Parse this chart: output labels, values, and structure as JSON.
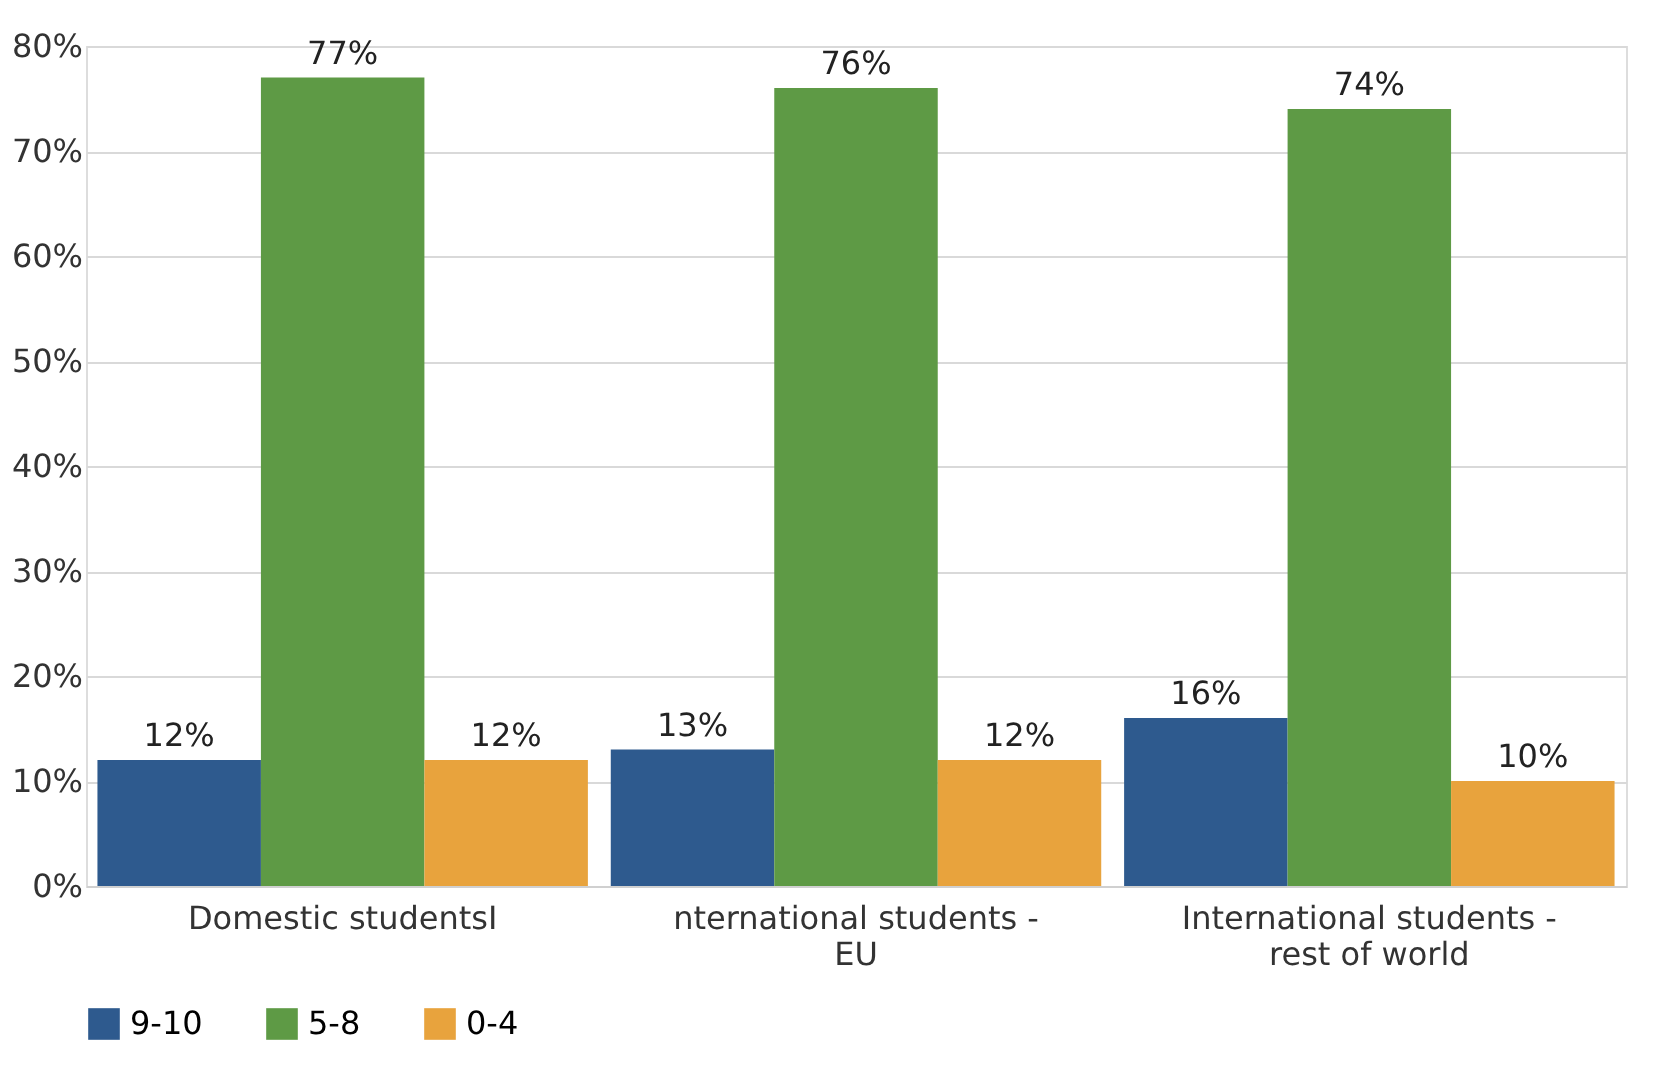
{
  "chart_data": {
    "type": "bar",
    "categories": [
      "Domestic studentsI",
      "nternational students - EU",
      "International students - rest of world"
    ],
    "series": [
      {
        "name": "9-10",
        "color": "#2e5a8e",
        "values": [
          12,
          13,
          16
        ]
      },
      {
        "name": "5-8",
        "color": "#5e9a45",
        "values": [
          77,
          76,
          74
        ]
      },
      {
        "name": "0-4",
        "color": "#e8a33d",
        "values": [
          12,
          12,
          10
        ]
      }
    ],
    "ylim": [
      0,
      80
    ],
    "yticks": [
      {
        "value": 0,
        "label": "0%"
      },
      {
        "value": 10,
        "label": "10%"
      },
      {
        "value": 20,
        "label": "20%"
      },
      {
        "value": 30,
        "label": "30%"
      },
      {
        "value": 40,
        "label": "40%"
      },
      {
        "value": 50,
        "label": "50%"
      },
      {
        "value": 60,
        "label": "60%"
      },
      {
        "value": 70,
        "label": "70%"
      },
      {
        "value": 80,
        "label": "80%"
      }
    ],
    "value_labels": [
      [
        "12%",
        "13%",
        "16%"
      ],
      [
        "77%",
        "76%",
        "74%"
      ],
      [
        "12%",
        "12%",
        "10%"
      ]
    ],
    "grid": "y",
    "legend": "bottom"
  }
}
